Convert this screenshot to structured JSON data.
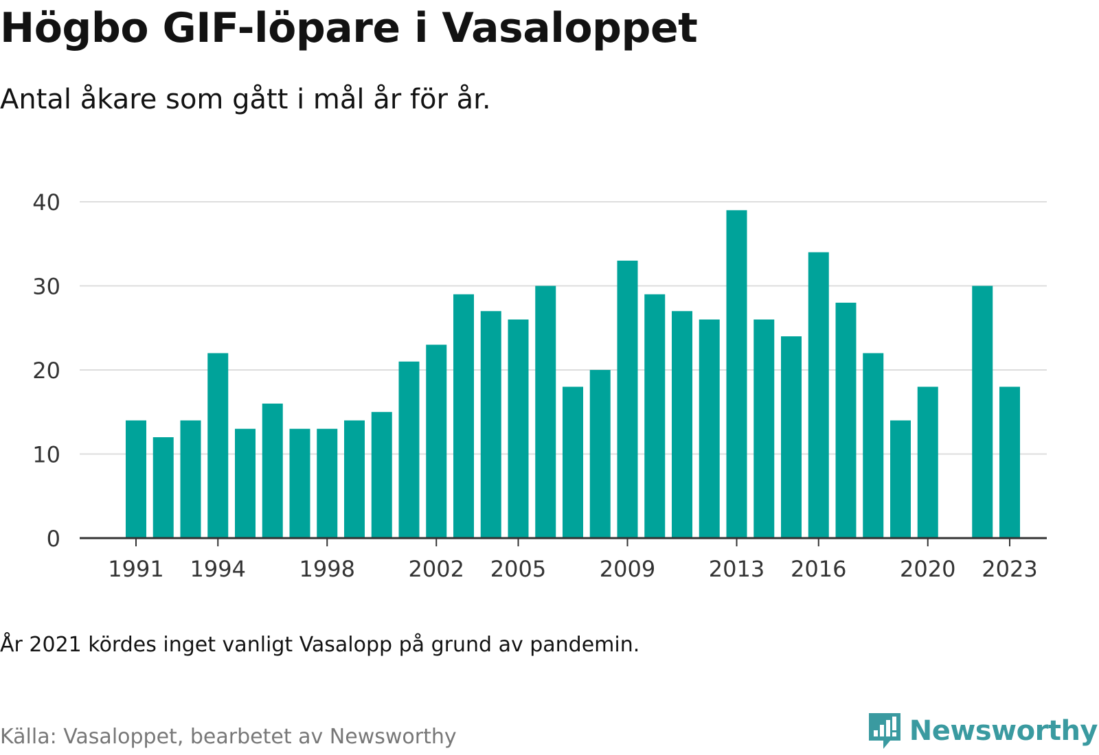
{
  "title": "Högbo GIF-löpare i Vasaloppet",
  "subtitle": "Antal åkare som gått i mål år för år.",
  "note": "År 2021 kördes inget vanligt Vasalopp på grund av pandemin.",
  "source": "Källa: Vasaloppet, bearbetet av Newsworthy",
  "brand": {
    "name": "Newsworthy",
    "icon": "newsworthy-logo-icon",
    "color": "#3a9aa0"
  },
  "colors": {
    "bar": "#00a39a",
    "grid": "#dddddd",
    "axis": "#333333"
  },
  "chart_data": {
    "type": "bar",
    "x": [
      1991,
      1992,
      1993,
      1994,
      1995,
      1996,
      1997,
      1998,
      1999,
      2000,
      2001,
      2002,
      2003,
      2004,
      2005,
      2006,
      2007,
      2008,
      2009,
      2010,
      2011,
      2012,
      2013,
      2014,
      2015,
      2016,
      2017,
      2018,
      2019,
      2020,
      2021,
      2022,
      2023
    ],
    "values": [
      14,
      12,
      14,
      22,
      13,
      16,
      13,
      13,
      14,
      15,
      21,
      23,
      29,
      27,
      26,
      30,
      18,
      20,
      33,
      29,
      27,
      26,
      39,
      26,
      24,
      34,
      28,
      22,
      14,
      18,
      null,
      30,
      18
    ],
    "x_tick_labels": [
      "1991",
      "1994",
      "1998",
      "2002",
      "2005",
      "2009",
      "2013",
      "2016",
      "2020",
      "2023"
    ],
    "y_ticks": [
      0,
      10,
      20,
      30,
      40
    ],
    "ylim": [
      0,
      40
    ],
    "xlabel": "",
    "ylabel": "",
    "grid": true,
    "legend": "none"
  }
}
